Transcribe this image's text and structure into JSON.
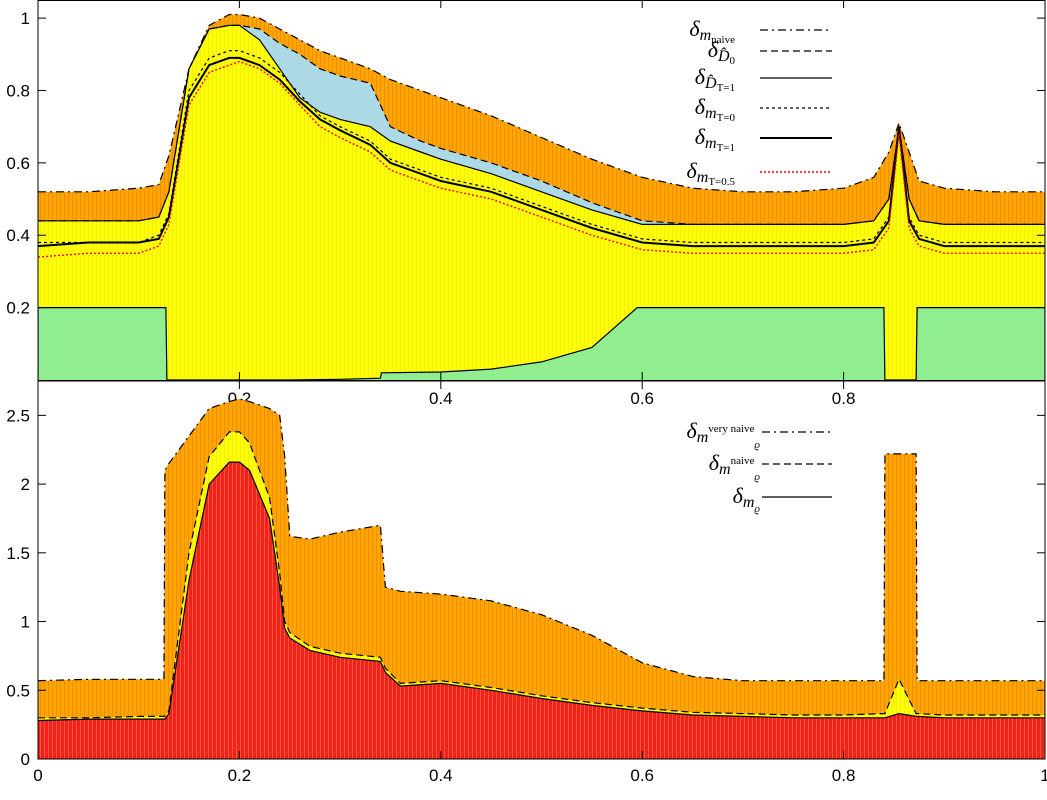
{
  "colors": {
    "orange": "#ffa500",
    "yellow": "#ffff00",
    "green": "#90ee90",
    "lightblue": "#add8e6",
    "red": "#ee2222",
    "line": "#000000",
    "dotted_red": "#ff0000"
  },
  "chart_data": [
    {
      "type": "area",
      "panel": "top",
      "title": "",
      "xlabel": "",
      "ylabel": "",
      "xlim": [
        0,
        1
      ],
      "ylim": [
        0,
        1.05
      ],
      "x_ticks": [
        0.2,
        0.4,
        0.6,
        0.8
      ],
      "x_tick_labels": [
        "0.2",
        "0.4",
        "0.6",
        "0.8"
      ],
      "y_ticks": [
        0.2,
        0.4,
        0.6,
        0.8,
        1
      ],
      "y_tick_labels": [
        "0.2",
        "0.4",
        "0.6",
        "0.8",
        "1"
      ],
      "grid": false,
      "legend_position": "top-right",
      "legend": [
        {
          "sym": "δ",
          "base": "m",
          "sub": "naive",
          "style": "dashdot"
        },
        {
          "sym": "δ",
          "base": "D̂",
          "sub": "0",
          "style": "dashed"
        },
        {
          "sym": "δ",
          "base": "D̂",
          "sub": "T=1",
          "style": "solid"
        },
        {
          "sym": "δ",
          "base": "m",
          "sub": "T=0",
          "style": "dotted"
        },
        {
          "sym": "δ",
          "base": "m",
          "sub": "T=1",
          "style": "solid-thick"
        },
        {
          "sym": "δ",
          "base": "m",
          "sub": "T=0.5",
          "style": "dotted-red"
        }
      ],
      "x": [
        0,
        0.05,
        0.1,
        0.12,
        0.13,
        0.15,
        0.17,
        0.19,
        0.2,
        0.22,
        0.24,
        0.26,
        0.28,
        0.3,
        0.33,
        0.35,
        0.38,
        0.4,
        0.45,
        0.5,
        0.55,
        0.6,
        0.65,
        0.7,
        0.75,
        0.8,
        0.83,
        0.845,
        0.855,
        0.865,
        0.875,
        0.9,
        0.95,
        1
      ],
      "series": [
        {
          "key": "m_naive",
          "values": [
            0.52,
            0.52,
            0.53,
            0.54,
            0.62,
            0.86,
            0.98,
            1.01,
            1.01,
            1.0,
            0.97,
            0.94,
            0.91,
            0.89,
            0.86,
            0.83,
            0.8,
            0.78,
            0.73,
            0.67,
            0.61,
            0.56,
            0.53,
            0.52,
            0.52,
            0.53,
            0.56,
            0.63,
            0.71,
            0.63,
            0.55,
            0.53,
            0.52,
            0.52
          ]
        },
        {
          "key": "D0",
          "values": [
            0.44,
            0.44,
            0.44,
            0.45,
            0.52,
            0.86,
            0.97,
            0.98,
            0.98,
            0.97,
            0.93,
            0.9,
            0.86,
            0.84,
            0.82,
            0.7,
            0.66,
            0.64,
            0.6,
            0.55,
            0.49,
            0.44,
            0.43,
            0.43,
            0.43,
            0.43,
            0.44,
            0.5,
            0.7,
            0.5,
            0.44,
            0.43,
            0.43,
            0.43
          ]
        },
        {
          "key": "DT1",
          "values": [
            0.44,
            0.44,
            0.44,
            0.45,
            0.52,
            0.86,
            0.97,
            0.98,
            0.98,
            0.94,
            0.86,
            0.78,
            0.74,
            0.72,
            0.7,
            0.66,
            0.63,
            0.61,
            0.57,
            0.52,
            0.47,
            0.43,
            0.43,
            0.43,
            0.43,
            0.43,
            0.44,
            0.5,
            0.7,
            0.5,
            0.44,
            0.43,
            0.43,
            0.43
          ]
        },
        {
          "key": "mT0",
          "values": [
            0.38,
            0.38,
            0.38,
            0.4,
            0.46,
            0.8,
            0.89,
            0.91,
            0.91,
            0.89,
            0.85,
            0.79,
            0.73,
            0.7,
            0.66,
            0.61,
            0.58,
            0.56,
            0.53,
            0.48,
            0.43,
            0.39,
            0.38,
            0.38,
            0.38,
            0.38,
            0.39,
            0.45,
            0.69,
            0.45,
            0.4,
            0.38,
            0.38,
            0.38
          ]
        },
        {
          "key": "mT1",
          "values": [
            0.37,
            0.38,
            0.38,
            0.39,
            0.45,
            0.78,
            0.87,
            0.89,
            0.89,
            0.87,
            0.83,
            0.77,
            0.72,
            0.69,
            0.65,
            0.6,
            0.57,
            0.55,
            0.52,
            0.47,
            0.42,
            0.38,
            0.37,
            0.37,
            0.37,
            0.37,
            0.38,
            0.44,
            0.7,
            0.44,
            0.39,
            0.37,
            0.37,
            0.37
          ]
        },
        {
          "key": "mT05",
          "values": [
            0.34,
            0.35,
            0.35,
            0.37,
            0.43,
            0.76,
            0.85,
            0.87,
            0.88,
            0.86,
            0.82,
            0.76,
            0.7,
            0.67,
            0.63,
            0.58,
            0.55,
            0.53,
            0.5,
            0.45,
            0.4,
            0.36,
            0.35,
            0.35,
            0.35,
            0.35,
            0.36,
            0.42,
            0.68,
            0.42,
            0.37,
            0.35,
            0.35,
            0.35
          ]
        }
      ],
      "green_region": {
        "x": [
          0,
          0.127,
          0.128,
          0.25,
          0.3,
          0.34,
          0.341,
          0.4,
          0.45,
          0.5,
          0.55,
          0.595,
          0.6,
          0.84,
          0.841,
          0.872,
          0.873,
          1
        ],
        "values": [
          0.2,
          0.2,
          0.0,
          0.0,
          0.002,
          0.005,
          0.02,
          0.022,
          0.03,
          0.05,
          0.09,
          0.2,
          0.2,
          0.2,
          0.0,
          0.0,
          0.2,
          0.2
        ]
      }
    },
    {
      "type": "area",
      "panel": "bottom",
      "title": "",
      "xlabel": "",
      "ylabel": "",
      "xlim": [
        0,
        1
      ],
      "ylim": [
        0,
        2.75
      ],
      "x_ticks": [
        0,
        0.2,
        0.4,
        0.6,
        0.8,
        1
      ],
      "x_tick_labels": [
        "0",
        "0.2",
        "0.4",
        "0.6",
        "0.8",
        "1"
      ],
      "y_ticks": [
        0,
        0.5,
        1,
        1.5,
        2,
        2.5
      ],
      "y_tick_labels": [
        "0",
        "0.5",
        "1",
        "1.5",
        "2",
        "2.5"
      ],
      "grid": false,
      "legend_position": "top-right",
      "legend": [
        {
          "sym": "δ",
          "base": "m",
          "base_sub": "ϱ",
          "sup": "very naive",
          "style": "dashdot"
        },
        {
          "sym": "δ",
          "base": "m",
          "base_sub": "ϱ",
          "sup": "naive",
          "style": "dashed"
        },
        {
          "sym": "δ",
          "base": "m",
          "base_sub": "ϱ",
          "sup": "",
          "style": "solid"
        }
      ],
      "x": [
        0,
        0.05,
        0.1,
        0.125,
        0.126,
        0.13,
        0.15,
        0.17,
        0.19,
        0.2,
        0.21,
        0.23,
        0.24,
        0.245,
        0.25,
        0.27,
        0.3,
        0.34,
        0.345,
        0.36,
        0.4,
        0.45,
        0.5,
        0.55,
        0.6,
        0.65,
        0.7,
        0.75,
        0.8,
        0.84,
        0.841,
        0.855,
        0.872,
        0.873,
        0.9,
        0.95,
        1
      ],
      "series": [
        {
          "key": "very_naive",
          "values": [
            0.57,
            0.58,
            0.58,
            0.58,
            2.1,
            2.15,
            2.35,
            2.55,
            2.6,
            2.62,
            2.6,
            2.55,
            2.5,
            2.2,
            1.62,
            1.6,
            1.65,
            1.7,
            1.25,
            1.22,
            1.2,
            1.15,
            1.05,
            0.9,
            0.7,
            0.6,
            0.57,
            0.57,
            0.57,
            0.57,
            2.22,
            2.22,
            2.22,
            0.57,
            0.57,
            0.57,
            0.57
          ]
        },
        {
          "key": "naive",
          "values": [
            0.3,
            0.3,
            0.31,
            0.31,
            0.31,
            0.35,
            1.5,
            2.2,
            2.38,
            2.38,
            2.3,
            1.9,
            1.35,
            1.0,
            0.92,
            0.82,
            0.77,
            0.74,
            0.66,
            0.55,
            0.57,
            0.52,
            0.46,
            0.41,
            0.37,
            0.34,
            0.33,
            0.32,
            0.32,
            0.33,
            0.33,
            0.58,
            0.33,
            0.33,
            0.32,
            0.32,
            0.32
          ]
        },
        {
          "key": "rho",
          "values": [
            0.28,
            0.29,
            0.29,
            0.29,
            0.29,
            0.33,
            1.3,
            2.0,
            2.16,
            2.16,
            2.1,
            1.75,
            1.25,
            0.95,
            0.88,
            0.79,
            0.74,
            0.71,
            0.63,
            0.53,
            0.55,
            0.5,
            0.44,
            0.39,
            0.35,
            0.32,
            0.31,
            0.3,
            0.3,
            0.3,
            0.3,
            0.33,
            0.31,
            0.31,
            0.3,
            0.3,
            0.3
          ]
        }
      ]
    }
  ]
}
